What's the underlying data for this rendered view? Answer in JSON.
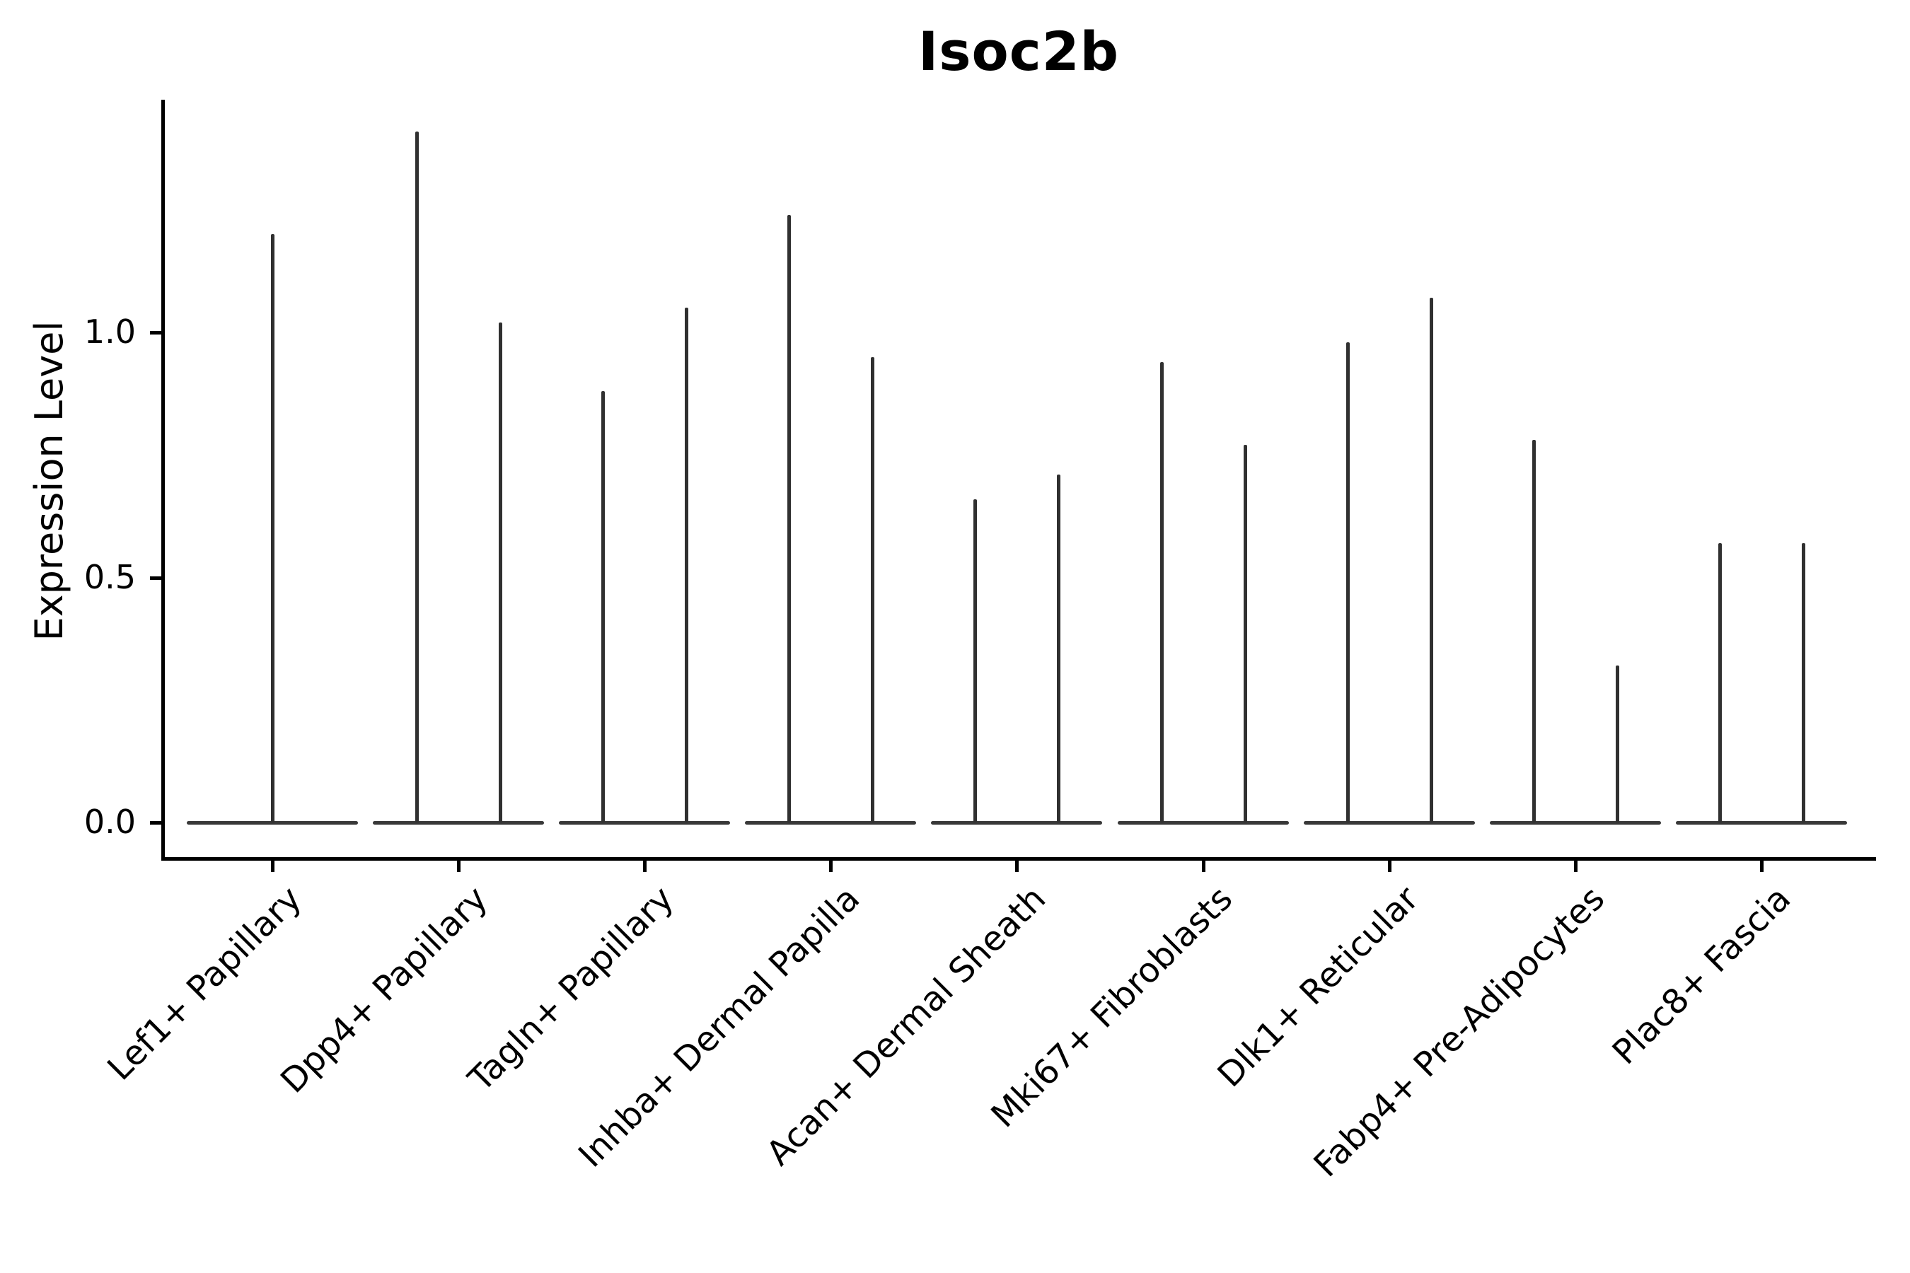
{
  "title": "Isoc2b",
  "axes": {
    "ylabel": "Expression Level",
    "ytick_labels": [
      "0.0",
      "0.5",
      "1.0"
    ]
  },
  "colors": {
    "violin": "#303030",
    "violin_body": "#383838",
    "axis": "#000000",
    "text": "#000000",
    "background": "#ffffff"
  },
  "chart_data": {
    "type": "violin",
    "title": "Isoc2b",
    "xlabel": "",
    "ylabel": "Expression Level",
    "ylim": [
      -0.075,
      1.48
    ],
    "yticks": [
      0,
      0.5,
      1.0
    ],
    "grid": false,
    "legend": "none",
    "categories": [
      "Lef1+ Papillary",
      "Dpp4+ Papillary",
      "Tagln+ Papillary",
      "Inhba+ Dermal Papilla",
      "Acan+ Dermal Sheath",
      "Mki67+ Fibroblasts",
      "Dlk1+ Reticular",
      "Fabp4+ Pre-Adipocytes",
      "Plac8+ Fascia"
    ],
    "violin_maxima": [
      [
        1.2
      ],
      [
        1.41,
        1.02
      ],
      [
        0.88,
        1.05
      ],
      [
        1.24,
        0.95
      ],
      [
        0.66,
        0.71
      ],
      [
        0.94,
        0.77
      ],
      [
        0.98,
        1.07
      ],
      [
        0.78,
        0.32
      ],
      [
        0.57,
        0.57
      ]
    ],
    "violin_baseline_value": 0.0
  }
}
